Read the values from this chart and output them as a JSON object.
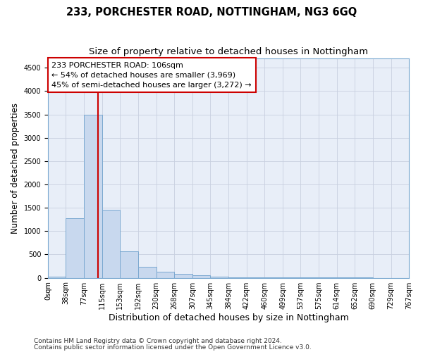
{
  "title": "233, PORCHESTER ROAD, NOTTINGHAM, NG3 6GQ",
  "subtitle": "Size of property relative to detached houses in Nottingham",
  "xlabel": "Distribution of detached houses by size in Nottingham",
  "ylabel": "Number of detached properties",
  "bin_labels": [
    "0sqm",
    "38sqm",
    "77sqm",
    "115sqm",
    "153sqm",
    "192sqm",
    "230sqm",
    "268sqm",
    "307sqm",
    "345sqm",
    "384sqm",
    "422sqm",
    "460sqm",
    "499sqm",
    "537sqm",
    "575sqm",
    "614sqm",
    "652sqm",
    "690sqm",
    "729sqm",
    "767sqm"
  ],
  "bin_edges": [
    0,
    38,
    77,
    115,
    153,
    192,
    230,
    268,
    307,
    345,
    384,
    422,
    460,
    499,
    537,
    575,
    614,
    652,
    690,
    729,
    767
  ],
  "bar_heights": [
    30,
    1280,
    3500,
    1460,
    570,
    240,
    130,
    90,
    50,
    20,
    15,
    10,
    5,
    5,
    5,
    2,
    2,
    2,
    1,
    1
  ],
  "bar_color": "#c8d8ee",
  "bar_edge_color": "#7aa8d0",
  "property_size": 106,
  "vline_color": "#cc0000",
  "annotation_text": "233 PORCHESTER ROAD: 106sqm\n← 54% of detached houses are smaller (3,969)\n45% of semi-detached houses are larger (3,272) →",
  "annotation_box_color": "#cc0000",
  "ylim_max": 4700,
  "yticks": [
    0,
    500,
    1000,
    1500,
    2000,
    2500,
    3000,
    3500,
    4000,
    4500
  ],
  "footer_line1": "Contains HM Land Registry data © Crown copyright and database right 2024.",
  "footer_line2": "Contains public sector information licensed under the Open Government Licence v3.0.",
  "bg_color": "#ffffff",
  "plot_bg_color": "#e8eef8",
  "grid_color": "#c8d0e0",
  "title_fontsize": 10.5,
  "subtitle_fontsize": 9.5,
  "ylabel_fontsize": 8.5,
  "xlabel_fontsize": 9,
  "tick_fontsize": 7,
  "ann_fontsize": 8,
  "footer_fontsize": 6.5
}
